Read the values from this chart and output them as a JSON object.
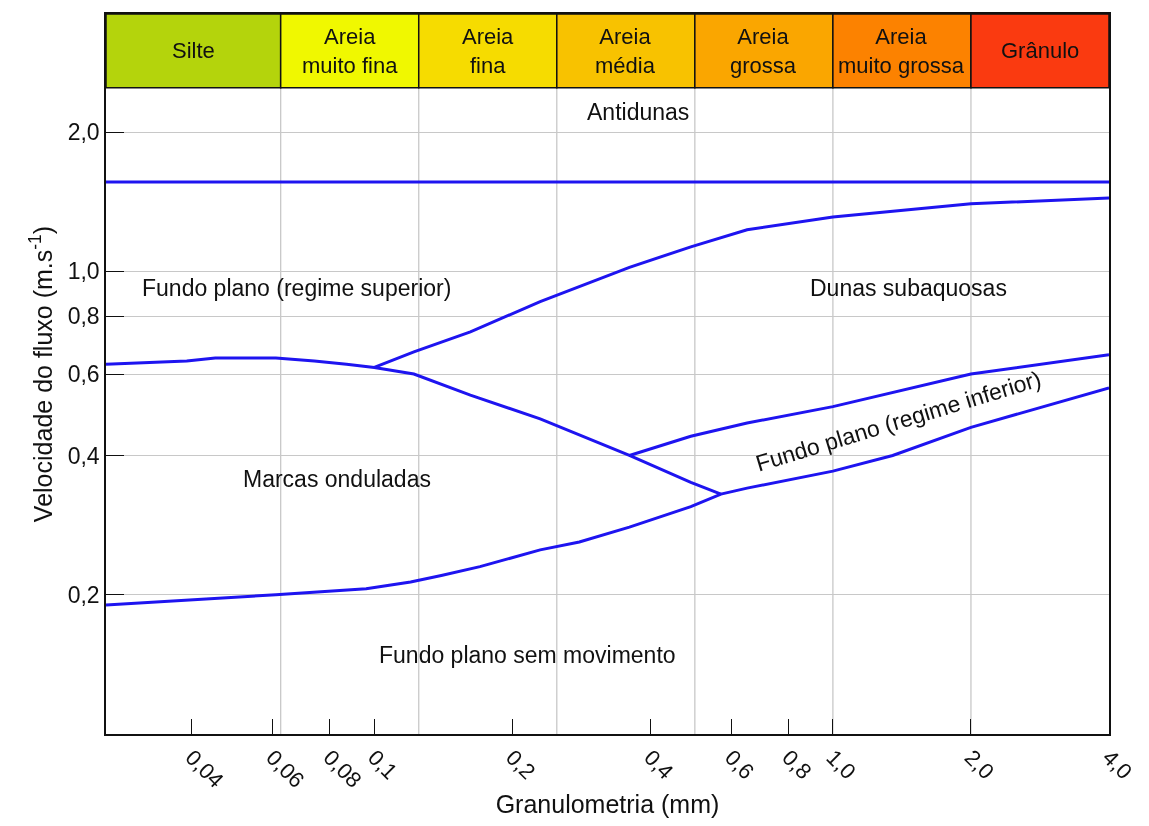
{
  "chart_data": {
    "type": "line",
    "xlabel": "Granulometria (mm)",
    "ylabel": "Velocidade do fluxo (m.s$^{-1}$)",
    "log": "xy",
    "xlim": [
      0.026,
      4.0
    ],
    "ylim": [
      0.1,
      3.6
    ],
    "xticks": [
      {
        "value": 0.04,
        "label": "0,04"
      },
      {
        "value": 0.06,
        "label": "0,06"
      },
      {
        "value": 0.08,
        "label": "0,08"
      },
      {
        "value": 0.1,
        "label": "0,1"
      },
      {
        "value": 0.2,
        "label": "0,2"
      },
      {
        "value": 0.4,
        "label": "0,4"
      },
      {
        "value": 0.6,
        "label": "0,6"
      },
      {
        "value": 0.8,
        "label": "0,8"
      },
      {
        "value": 1.0,
        "label": "1,0"
      },
      {
        "value": 2.0,
        "label": "2,0"
      },
      {
        "value": 4.0,
        "label": "4,0"
      }
    ],
    "yticks": [
      {
        "value": 0.2,
        "label": "0,2"
      },
      {
        "value": 0.4,
        "label": "0,4"
      },
      {
        "value": 0.6,
        "label": "0,6"
      },
      {
        "value": 0.8,
        "label": "0,8"
      },
      {
        "value": 1.0,
        "label": "1,0"
      },
      {
        "value": 2.0,
        "label": "2,0"
      }
    ],
    "grid": "y",
    "line_style": "solid",
    "series": [
      {
        "color": "#1e14f0",
        "x": [
          0.026,
          4.0
        ],
        "values": [
          1.56,
          1.56
        ]
      },
      {
        "color": "#1e14f0",
        "x": [
          0.026,
          0.039,
          0.045,
          0.056,
          0.061,
          0.074,
          0.087,
          0.1,
          0.122,
          0.162,
          0.23,
          0.36,
          0.49,
          0.57
        ],
        "values": [
          0.63,
          0.64,
          0.65,
          0.65,
          0.65,
          0.64,
          0.63,
          0.62,
          0.6,
          0.54,
          0.48,
          0.4,
          0.35,
          0.33
        ]
      },
      {
        "color": "#1e14f0",
        "x": [
          0.1,
          0.122,
          0.162,
          0.23,
          0.36,
          0.49,
          0.65,
          1.0,
          2.0,
          4.0
        ],
        "values": [
          0.62,
          0.67,
          0.74,
          0.86,
          1.02,
          1.13,
          1.23,
          1.31,
          1.4,
          1.44
        ]
      },
      {
        "color": "#1e14f0",
        "x": [
          0.36,
          0.49,
          0.65,
          1.0,
          2.0,
          4.0
        ],
        "values": [
          0.4,
          0.44,
          0.47,
          0.51,
          0.6,
          0.66
        ]
      },
      {
        "color": "#1e14f0",
        "x": [
          0.026,
          0.061,
          0.096,
          0.12,
          0.14,
          0.17,
          0.23,
          0.28,
          0.36,
          0.49,
          0.57,
          0.65,
          1.0,
          1.35,
          2.0,
          4.0
        ],
        "values": [
          0.19,
          0.2,
          0.206,
          0.213,
          0.22,
          0.23,
          0.25,
          0.26,
          0.28,
          0.31,
          0.33,
          0.34,
          0.37,
          0.4,
          0.46,
          0.56
        ]
      }
    ],
    "ref_lines": [
      {
        "axis": "x",
        "value": 0.0625,
        "color": "#c8c8c8"
      },
      {
        "axis": "x",
        "value": 0.125,
        "color": "#c8c8c8"
      },
      {
        "axis": "x",
        "value": 0.25,
        "color": "#c8c8c8"
      },
      {
        "axis": "x",
        "value": 0.5,
        "color": "#c8c8c8"
      },
      {
        "axis": "x",
        "value": 1.0,
        "color": "#c8c8c8"
      },
      {
        "axis": "x",
        "value": 2.0,
        "color": "#c8c8c8"
      }
    ],
    "bands": [
      {
        "axis": "x",
        "from": 0.026,
        "to": 0.0625,
        "label": "Silte",
        "color": "#b4d40c"
      },
      {
        "axis": "x",
        "from": 0.0625,
        "to": 0.125,
        "label": "Areia\nmuito fina",
        "color": "#f0f800"
      },
      {
        "axis": "x",
        "from": 0.125,
        "to": 0.25,
        "label": "Areia\nfina",
        "color": "#f6dc00"
      },
      {
        "axis": "x",
        "from": 0.25,
        "to": 0.5,
        "label": "Areia\nmédia",
        "color": "#f8c200"
      },
      {
        "axis": "x",
        "from": 0.5,
        "to": 1.0,
        "label": "Areia\ngrossa",
        "color": "#faa600"
      },
      {
        "axis": "x",
        "from": 1.0,
        "to": 2.0,
        "label": "Areia\nmuito grossa",
        "color": "#fc8200"
      },
      {
        "axis": "x",
        "from": 2.0,
        "to": 4.0,
        "label": "Grânulo",
        "color": "#fa3a10"
      }
    ],
    "annotations": [
      "Antidunas",
      "Fundo plano (regime superior)",
      "Dunas subaquosas",
      "Marcas onduladas",
      "Fundo plano (regime inferior)",
      "Fundo plano sem movimento"
    ]
  }
}
